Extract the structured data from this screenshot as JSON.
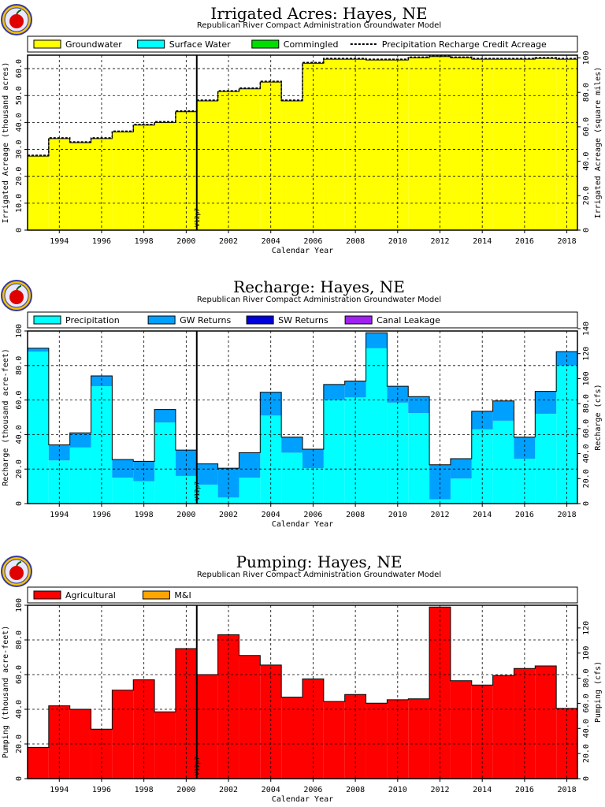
{
  "chart_data": [
    {
      "type": "area",
      "title": "Irrigated Acres: Hayes, NE",
      "subtitle": "Republican River Compact Administration Groundwater Model",
      "xlabel": "Calendar Year",
      "ylabel": "Irrigated Acreage (thousand acres)",
      "y2label": "Irrigated Acreage (square miles)",
      "xlim": [
        1992.5,
        2018.5
      ],
      "ylim": [
        0,
        65
      ],
      "yticks": [
        0,
        10.0,
        20.0,
        30.0,
        40.0,
        50.0,
        60.0
      ],
      "ytick_labels": [
        "0",
        "10.0",
        "20.0",
        "30.0",
        "40.0",
        "50.0",
        "60.0"
      ],
      "y2lim": [
        0,
        101.6
      ],
      "y2ticks": [
        0,
        20.0,
        40.0,
        60.0,
        80.0,
        100
      ],
      "y2tick_labels": [
        "0",
        "20.0",
        "40.0",
        "60.0",
        "80.0",
        "100"
      ],
      "xticks": [
        1994,
        1996,
        1998,
        2000,
        2002,
        2004,
        2006,
        2008,
        2010,
        2012,
        2014,
        2016,
        2018
      ],
      "xtick_labels": [
        "1994",
        "1996",
        "1998",
        "2000",
        "2002",
        "2004",
        "2006",
        "2008",
        "2010",
        "2012",
        "2014",
        "2016",
        "2018"
      ],
      "grid": true,
      "legend_position": "top",
      "marker": {
        "x": 2000.5,
        "label": "V12p7"
      },
      "x": [
        1993,
        1994,
        1995,
        1996,
        1997,
        1998,
        1999,
        2000,
        2001,
        2002,
        2003,
        2004,
        2005,
        2006,
        2007,
        2008,
        2009,
        2010,
        2011,
        2012,
        2013,
        2014,
        2015,
        2016,
        2017,
        2018
      ],
      "series": [
        {
          "name": "Groundwater",
          "color": "#ffff00",
          "kind": "stack",
          "values": [
            27.5,
            34.0,
            32.5,
            34.0,
            36.5,
            39.0,
            40.0,
            44.0,
            48.0,
            51.5,
            52.5,
            55.0,
            48.0,
            62.0,
            63.5,
            63.5,
            63.2,
            63.2,
            64.0,
            64.5,
            64.0,
            63.5,
            63.5,
            63.5,
            63.8,
            63.5
          ]
        },
        {
          "name": "Surface Water",
          "color": "#00ffff",
          "kind": "stack",
          "values": [
            0,
            0,
            0,
            0,
            0,
            0,
            0,
            0,
            0,
            0,
            0,
            0,
            0,
            0,
            0,
            0,
            0,
            0,
            0,
            0,
            0,
            0,
            0,
            0,
            0,
            0
          ]
        },
        {
          "name": "Commingled",
          "color": "#00dd00",
          "kind": "stack",
          "values": [
            0,
            0,
            0,
            0,
            0,
            0,
            0,
            0,
            0,
            0,
            0,
            0,
            0,
            0,
            0,
            0,
            0,
            0,
            0,
            0,
            0,
            0,
            0,
            0,
            0,
            0
          ]
        },
        {
          "name": "Precipitation Recharge Credit Acreage",
          "color": "#000000",
          "kind": "dashed",
          "values": [
            27.8,
            34.3,
            32.8,
            34.3,
            36.8,
            39.3,
            40.3,
            44.3,
            48.3,
            51.8,
            52.8,
            55.3,
            48.3,
            62.3,
            63.8,
            63.8,
            63.5,
            63.5,
            64.3,
            64.8,
            64.3,
            63.8,
            63.8,
            63.8,
            64.1,
            63.8
          ]
        }
      ]
    },
    {
      "type": "area",
      "title": "Recharge: Hayes, NE",
      "subtitle": "Republican River Compact Administration Groundwater Model",
      "xlabel": "Calendar Year",
      "ylabel": "Recharge (thousand acre-feet)",
      "y2label": "Recharge (cfs)",
      "xlim": [
        1992.5,
        2018.5
      ],
      "ylim": [
        0,
        100
      ],
      "yticks": [
        0,
        20.0,
        40.0,
        60.0,
        80.0,
        100
      ],
      "ytick_labels": [
        "0",
        "20.0",
        "40.0",
        "60.0",
        "80.0",
        "100"
      ],
      "y2lim": [
        0,
        138.1
      ],
      "y2ticks": [
        0,
        20.0,
        40.0,
        60.0,
        80.0,
        100,
        120,
        140
      ],
      "y2tick_labels": [
        "0",
        "20.0",
        "40.0",
        "60.0",
        "80.0",
        "100",
        "120",
        "140"
      ],
      "xticks": [
        1994,
        1996,
        1998,
        2000,
        2002,
        2004,
        2006,
        2008,
        2010,
        2012,
        2014,
        2016,
        2018
      ],
      "xtick_labels": [
        "1994",
        "1996",
        "1998",
        "2000",
        "2002",
        "2004",
        "2006",
        "2008",
        "2010",
        "2012",
        "2014",
        "2016",
        "2018"
      ],
      "grid": true,
      "legend_position": "top",
      "marker": {
        "x": 2000.5,
        "label": "V12p7"
      },
      "x": [
        1993,
        1994,
        1995,
        1996,
        1997,
        1998,
        1999,
        2000,
        2001,
        2002,
        2003,
        2004,
        2005,
        2006,
        2007,
        2008,
        2009,
        2010,
        2011,
        2012,
        2013,
        2014,
        2015,
        2016,
        2017,
        2018
      ],
      "series": [
        {
          "name": "Precipitation",
          "color": "#00ffff",
          "kind": "stack",
          "values": [
            88.0,
            25.0,
            32.5,
            68.0,
            15.0,
            13.0,
            47.0,
            16.0,
            11.0,
            3.5,
            15.0,
            51.0,
            29.5,
            20.5,
            60.0,
            61.5,
            90.0,
            58.5,
            52.5,
            2.5,
            14.5,
            43.0,
            48.0,
            26.0,
            52.0,
            80.0
          ]
        },
        {
          "name": "GW Returns",
          "color": "#00a0ff",
          "kind": "stack",
          "values": [
            2.0,
            9.0,
            8.5,
            6.0,
            10.5,
            11.5,
            7.5,
            15.0,
            12.0,
            17.0,
            14.5,
            13.5,
            9.0,
            11.0,
            9.0,
            9.5,
            9.0,
            9.5,
            9.5,
            20.0,
            11.5,
            10.5,
            11.5,
            12.5,
            13.0,
            8.0
          ]
        },
        {
          "name": "SW Returns",
          "color": "#0000dd",
          "kind": "stack",
          "values": [
            0,
            0,
            0,
            0,
            0,
            0,
            0,
            0,
            0,
            0,
            0,
            0,
            0,
            0,
            0,
            0,
            0,
            0,
            0,
            0,
            0,
            0,
            0,
            0,
            0,
            0
          ]
        },
        {
          "name": "Canal Leakage",
          "color": "#a020f0",
          "kind": "stack",
          "values": [
            0,
            0,
            0,
            0,
            0,
            0,
            0,
            0,
            0,
            0,
            0,
            0,
            0,
            0,
            0,
            0,
            0,
            0,
            0,
            0,
            0,
            0,
            0,
            0,
            0,
            0
          ]
        }
      ]
    },
    {
      "type": "area",
      "title": "Pumping: Hayes, NE",
      "subtitle": "Republican River Compact Administration Groundwater Model",
      "xlabel": "Calendar Year",
      "ylabel": "Pumping (thousand acre-feet)",
      "y2label": "Pumping (cfs)",
      "xlim": [
        1992.5,
        2018.5
      ],
      "ylim": [
        0,
        100
      ],
      "yticks": [
        0,
        20.0,
        40.0,
        60.0,
        80.0,
        100
      ],
      "ytick_labels": [
        "0",
        "20.0",
        "40.0",
        "60.0",
        "80.0",
        "100"
      ],
      "y2lim": [
        0,
        138.1
      ],
      "y2ticks": [
        0,
        20.0,
        40.0,
        60.0,
        80.0,
        100,
        120
      ],
      "y2tick_labels": [
        "0",
        "20.0",
        "40.0",
        "60.0",
        "80.0",
        "100",
        "120"
      ],
      "xticks": [
        1994,
        1996,
        1998,
        2000,
        2002,
        2004,
        2006,
        2008,
        2010,
        2012,
        2014,
        2016,
        2018
      ],
      "xtick_labels": [
        "1994",
        "1996",
        "1998",
        "2000",
        "2002",
        "2004",
        "2006",
        "2008",
        "2010",
        "2012",
        "2014",
        "2016",
        "2018"
      ],
      "grid": true,
      "legend_position": "top",
      "marker": {
        "x": 2000.5,
        "label": "V12p7"
      },
      "x": [
        1993,
        1994,
        1995,
        1996,
        1997,
        1998,
        1999,
        2000,
        2001,
        2002,
        2003,
        2004,
        2005,
        2006,
        2007,
        2008,
        2009,
        2010,
        2011,
        2012,
        2013,
        2014,
        2015,
        2016,
        2017,
        2018
      ],
      "series": [
        {
          "name": "Agricultural",
          "color": "#ff0000",
          "kind": "stack",
          "values": [
            18.0,
            42.0,
            40.0,
            28.5,
            51.0,
            57.0,
            38.5,
            75.0,
            60.0,
            83.0,
            71.0,
            65.5,
            47.0,
            57.5,
            44.5,
            48.5,
            43.5,
            45.5,
            46.0,
            99.0,
            56.5,
            54.0,
            59.5,
            63.5,
            65.0,
            40.5
          ]
        },
        {
          "name": "M&I",
          "color": "#ffa500",
          "kind": "stack",
          "values": [
            0,
            0,
            0,
            0,
            0,
            0,
            0,
            0,
            0,
            0,
            0,
            0,
            0,
            0,
            0,
            0,
            0,
            0,
            0,
            0,
            0,
            0,
            0,
            0,
            0,
            0
          ]
        }
      ]
    }
  ]
}
